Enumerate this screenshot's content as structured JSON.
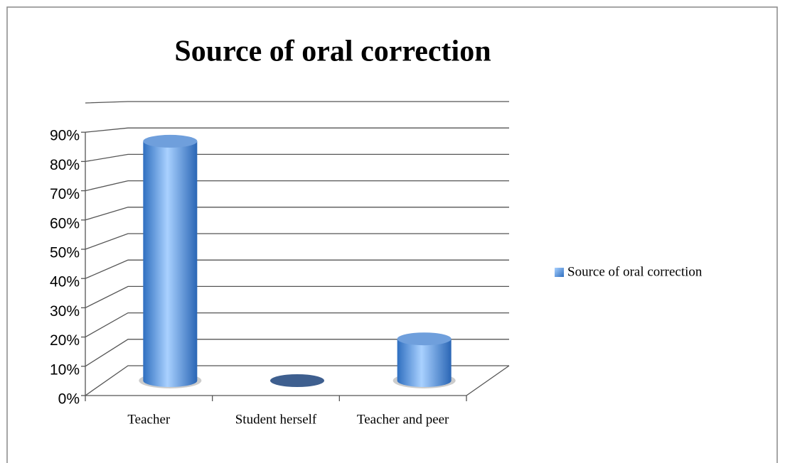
{
  "chart_data": {
    "type": "bar3d",
    "title": "Source of oral correction",
    "categories": [
      "Teacher",
      "Student herself",
      "Teacher and peer"
    ],
    "series": [
      {
        "name": "Source of oral correction",
        "color": "#5b9bd5",
        "values": [
          86,
          0,
          15
        ]
      }
    ],
    "ylim": [
      0,
      100
    ],
    "yticks": [
      {
        "value": 0,
        "label": "0%"
      },
      {
        "value": 10,
        "label": "10%"
      },
      {
        "value": 20,
        "label": "20%"
      },
      {
        "value": 30,
        "label": "30%"
      },
      {
        "value": 40,
        "label": "40%"
      },
      {
        "value": 50,
        "label": "50%"
      },
      {
        "value": 60,
        "label": "60%"
      },
      {
        "value": 70,
        "label": "70%"
      },
      {
        "value": 80,
        "label": "80%"
      },
      {
        "value": 90,
        "label": "90%"
      }
    ],
    "grid": true,
    "legend": "right"
  }
}
